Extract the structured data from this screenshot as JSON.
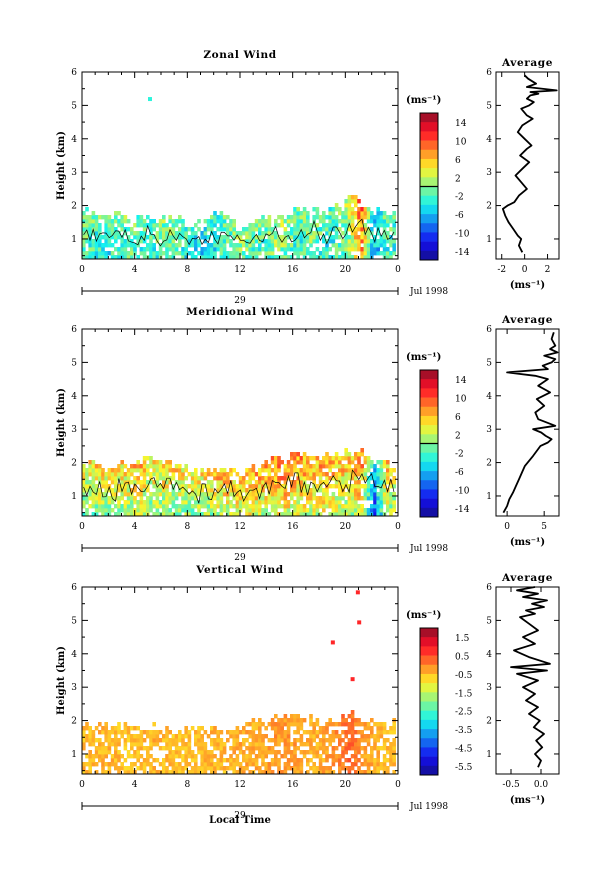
{
  "panels": [
    {
      "id": "zonal",
      "title": "Zonal Wind",
      "ylabel": "Height (km)",
      "xticks": [
        "0",
        "4",
        "8",
        "12",
        "16",
        "20",
        "0"
      ],
      "date_tick": "29",
      "date_label": "Jul 1998",
      "colorbar": {
        "unit": "(ms⁻¹)",
        "ticks": [
          "14",
          "10",
          "6",
          "2",
          "-2",
          "-6",
          "-10",
          "-14"
        ],
        "range": [
          -16,
          16
        ],
        "contour_at": 0
      },
      "average": {
        "title": "Average",
        "xlabel": "(ms⁻¹)",
        "xticks": [
          "-2",
          "0",
          "2"
        ],
        "xlim": [
          -2.5,
          3
        ],
        "profile_x": [
          -0.2,
          -0.5,
          -0.3,
          -0.6,
          -1.0,
          -1.4,
          -1.7,
          -1.9,
          -1.5,
          -0.9,
          -0.5,
          0.2,
          -0.3,
          -0.8,
          -0.2,
          0.4,
          -0.4,
          0.2,
          0.6,
          0.0,
          -0.6,
          -0.2,
          0.7,
          0.2,
          -0.3,
          0.4,
          0.8,
          0.2,
          0.5,
          1.2,
          0.5,
          2.8,
          0.2,
          1.0,
          0.3,
          0.0
        ],
        "profile_h": [
          0.6,
          0.8,
          1.0,
          1.1,
          1.3,
          1.5,
          1.7,
          1.9,
          2.0,
          2.1,
          2.3,
          2.5,
          2.7,
          2.9,
          3.1,
          3.3,
          3.5,
          3.7,
          3.8,
          4.0,
          4.2,
          4.4,
          4.6,
          4.7,
          4.9,
          5.0,
          5.1,
          5.2,
          5.3,
          5.35,
          5.4,
          5.45,
          5.55,
          5.65,
          5.8,
          5.9
        ]
      }
    },
    {
      "id": "meridional",
      "title": "Meridional Wind",
      "ylabel": "Height (km)",
      "xticks": [
        "0",
        "4",
        "8",
        "12",
        "16",
        "20",
        "0"
      ],
      "date_tick": "29",
      "date_label": "Jul 1998",
      "colorbar": {
        "unit": "(ms⁻¹)",
        "ticks": [
          "14",
          "10",
          "6",
          "2",
          "-2",
          "-6",
          "-10",
          "-14"
        ],
        "range": [
          -16,
          16
        ],
        "contour_at": 0
      },
      "average": {
        "title": "Average",
        "xlabel": "(ms⁻¹)",
        "xticks": [
          "0",
          "5"
        ],
        "xlim": [
          -1.5,
          7
        ],
        "profile_x": [
          -0.5,
          0.0,
          0.3,
          0.8,
          1.2,
          1.6,
          2.0,
          2.4,
          3.5,
          4.5,
          5.5,
          6.0,
          5.2,
          4.6,
          3.5,
          6.5,
          4.2,
          3.8,
          5.0,
          4.0,
          5.8,
          4.2,
          5.5,
          3.8,
          0.0,
          5.5,
          4.8,
          6.0,
          6.5,
          5.0,
          6.8,
          5.8,
          6.5,
          6.0,
          6.3
        ],
        "profile_h": [
          0.5,
          0.7,
          0.9,
          1.1,
          1.3,
          1.5,
          1.7,
          1.9,
          2.2,
          2.5,
          2.6,
          2.7,
          2.8,
          2.9,
          3.0,
          3.1,
          3.3,
          3.5,
          3.7,
          3.9,
          4.1,
          4.3,
          4.5,
          4.6,
          4.7,
          4.8,
          4.9,
          5.0,
          5.1,
          5.2,
          5.3,
          5.4,
          5.5,
          5.7,
          5.9
        ]
      }
    },
    {
      "id": "vertical",
      "title": "Vertical Wind",
      "ylabel": "Height (km)",
      "xlabel": "Local Time",
      "xticks": [
        "0",
        "4",
        "8",
        "12",
        "16",
        "20",
        "0"
      ],
      "date_tick": "29",
      "date_label": "Jul 1998",
      "colorbar": {
        "unit": "(ms⁻¹)",
        "ticks": [
          "1.5",
          "0.5",
          "-0.5",
          "-1.5",
          "-2.5",
          "-3.5",
          "-4.5",
          "-5.5"
        ],
        "range": [
          -6,
          2
        ]
      },
      "average": {
        "title": "Average",
        "xlabel": "(ms⁻¹)",
        "xticks": [
          "-0.5",
          "0.0"
        ],
        "xlim": [
          -0.75,
          0.3
        ],
        "profile_x": [
          -0.05,
          0.0,
          -0.1,
          0.02,
          -0.08,
          0.05,
          -0.12,
          -0.02,
          -0.2,
          -0.05,
          -0.25,
          -0.1,
          -0.3,
          -0.05,
          -0.4,
          0.1,
          -0.5,
          0.15,
          -0.2,
          -0.45,
          -0.1,
          -0.3,
          -0.05,
          -0.2,
          -0.35,
          -0.1,
          -0.25,
          0.05,
          -0.15,
          0.1,
          -0.3,
          -0.05,
          -0.4,
          -0.1
        ],
        "profile_h": [
          0.6,
          0.8,
          1.0,
          1.2,
          1.4,
          1.6,
          1.8,
          2.0,
          2.2,
          2.4,
          2.6,
          2.8,
          3.0,
          3.2,
          3.4,
          3.5,
          3.6,
          3.7,
          3.9,
          4.1,
          4.3,
          4.5,
          4.7,
          4.9,
          5.1,
          5.2,
          5.3,
          5.4,
          5.5,
          5.6,
          5.7,
          5.8,
          5.9,
          6.0
        ]
      }
    }
  ],
  "chart_data": [
    {
      "type": "heatmap",
      "title": "Zonal Wind",
      "ylabel": "Height (km)",
      "ylim": [
        0.4,
        6
      ],
      "yticks": [
        1,
        2,
        3,
        4,
        5,
        6
      ],
      "x_hours": [
        0,
        4,
        8,
        12,
        16,
        20,
        24
      ],
      "colorbar_range": [
        -16,
        16
      ],
      "colorbar_unit": "ms^-1",
      "approx_top_height_km": [
        1.8,
        1.8,
        1.7,
        1.8,
        1.5,
        1.7,
        1.6,
        1.6,
        1.6,
        1.4,
        1.5,
        1.8,
        1.7,
        1.3,
        1.6,
        1.8,
        1.8,
        1.7,
        1.9,
        2.0,
        1.8,
        2.0,
        2.2,
        2.2,
        1.8,
        1.9,
        1.6
      ],
      "approx_mean_value": [
        -1,
        -2,
        -3,
        -2,
        -1,
        -3,
        -2,
        -1,
        -2,
        -3,
        -4,
        -3,
        -2,
        0,
        -1,
        -2,
        1,
        -1,
        -2,
        0,
        -3,
        -2,
        1,
        8,
        -6,
        -2,
        -3
      ]
    },
    {
      "type": "heatmap",
      "title": "Meridional Wind",
      "ylabel": "Height (km)",
      "ylim": [
        0.4,
        6
      ],
      "yticks": [
        1,
        2,
        3,
        4,
        5,
        6
      ],
      "x_hours": [
        0,
        4,
        8,
        12,
        16,
        20,
        24
      ],
      "colorbar_range": [
        -16,
        16
      ],
      "colorbar_unit": "ms^-1",
      "approx_top_height_km": [
        2.0,
        2.0,
        1.8,
        1.9,
        2.0,
        2.1,
        2.1,
        2.0,
        2.1,
        1.8,
        1.7,
        1.8,
        1.8,
        1.6,
        1.8,
        2.0,
        2.2,
        2.2,
        2.2,
        2.3,
        2.3,
        2.2,
        2.4,
        2.4,
        2.2,
        2.0,
        1.8
      ],
      "approx_mean_value": [
        1,
        2,
        2,
        2,
        3,
        3,
        2,
        3,
        2,
        2,
        2,
        3,
        4,
        4,
        5,
        4,
        6,
        5,
        5,
        4,
        5,
        4,
        3,
        6,
        -8,
        3,
        2
      ]
    },
    {
      "type": "heatmap",
      "title": "Vertical Wind",
      "ylabel": "Height (km)",
      "xlabel": "Local Time",
      "ylim": [
        0.4,
        6
      ],
      "yticks": [
        1,
        2,
        3,
        4,
        5,
        6
      ],
      "x_hours": [
        0,
        4,
        8,
        12,
        16,
        20,
        24
      ],
      "colorbar_range": [
        -6,
        2
      ],
      "colorbar_unit": "ms^-1",
      "approx_top_height_km": [
        1.9,
        1.8,
        1.8,
        1.9,
        1.8,
        1.8,
        1.8,
        1.8,
        1.7,
        1.8,
        1.8,
        1.8,
        1.8,
        1.9,
        2.0,
        2.0,
        2.1,
        2.2,
        2.1,
        2.0,
        2.1,
        2.0,
        2.2,
        2.1,
        2.0,
        2.0,
        1.9
      ],
      "approx_mean_value": [
        -0.5,
        -0.5,
        -0.4,
        -0.5,
        -0.6,
        -0.5,
        -0.4,
        -0.5,
        -0.5,
        -0.6,
        -0.5,
        -0.4,
        -0.5,
        -0.3,
        -0.4,
        -0.3,
        -0.2,
        -0.2,
        -0.3,
        -0.4,
        -0.3,
        -0.1,
        0.3,
        -0.2,
        -0.4,
        -0.5,
        -0.5
      ]
    }
  ]
}
